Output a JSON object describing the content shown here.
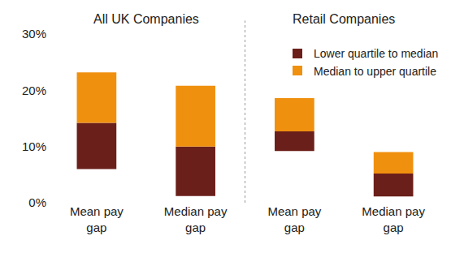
{
  "chart_data": {
    "type": "bar",
    "groups": [
      {
        "title": "All UK Companies",
        "categories": [
          "Mean pay gap",
          "Median pay gap"
        ]
      },
      {
        "title": "Retail Companies",
        "categories": [
          "Mean pay gap",
          "Median pay gap"
        ]
      }
    ],
    "base": [
      6,
      1.2,
      9.2,
      1.1
    ],
    "series": [
      {
        "name": "Lower quartile to median",
        "color": "#6b1f1a",
        "values": [
          8.2,
          8.8,
          3.5,
          4.1
        ]
      },
      {
        "name": "Median to upper quartile",
        "color": "#f0900f",
        "values": [
          9,
          10.8,
          5.9,
          3.8
        ]
      }
    ],
    "stacked": true,
    "ylim": [
      0,
      30
    ],
    "yticks": [
      {
        "value": 0,
        "label": "0%"
      },
      {
        "value": 10,
        "label": "10%"
      },
      {
        "value": 20,
        "label": "20%"
      },
      {
        "value": 30,
        "label": "30%"
      }
    ],
    "grid": false,
    "legend": "top right"
  }
}
